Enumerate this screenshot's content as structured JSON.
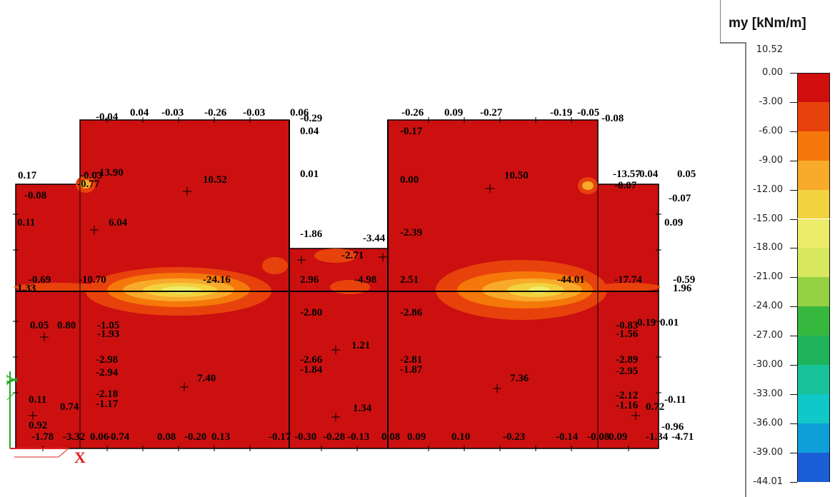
{
  "chart_data": {
    "type": "heatmap",
    "title": "my [kNm/m]",
    "legend_placement": "right",
    "legend": {
      "max_label": "10.52",
      "levels": [
        "0.00",
        "-3.00",
        "-6.00",
        "-9.00",
        "-12.00",
        "-15.00",
        "-18.00",
        "-21.00",
        "-24.00",
        "-27.00",
        "-30.00",
        "-33.00",
        "-36.00",
        "-39.00",
        "-44.01"
      ],
      "colors": [
        "#d10f0f",
        "#e8420c",
        "#f5780a",
        "#f8aa2a",
        "#f2d23e",
        "#ecec6a",
        "#d7e85e",
        "#94d244",
        "#36b83e",
        "#1fb35a",
        "#19c39a",
        "#10c8c8",
        "#0e9ed8",
        "#1a5fd6",
        "#4220c4"
      ]
    },
    "value_labels": [
      "-0.04",
      "0.04",
      "-0.03",
      "-0.26",
      "-0.03",
      "0.06",
      "-0.29",
      "0.04",
      "-0.26",
      "0.09",
      "-0.27",
      "-0.19",
      "-0.05",
      "-0.08",
      "-0.17",
      "0.17",
      "-0.03",
      "-13.90",
      "10.52",
      "0.01",
      "0.00",
      "10.50",
      "-13.57",
      "-0.04",
      "0.05",
      "-0.08",
      "-0.77",
      "-0.07",
      "-0.07",
      "0.11",
      "6.04",
      "0.09",
      "-1.86",
      "-2.39",
      "-3.44",
      "-2.71",
      "-0.69",
      "-10.70",
      "-24.16",
      "2.96",
      "-4.98",
      "2.51",
      "-44.01",
      "-17.74",
      "-0.59",
      "1.33",
      "1.96",
      "0.05",
      "0.80",
      "-1.05",
      "-1.93",
      "-2.80",
      "-2.86",
      "-0.83",
      "-1.56",
      "0.19",
      "0.01",
      "1.21",
      "-2.98",
      "-2.94",
      "-2.66",
      "-1.84",
      "-2.81",
      "-1.87",
      "7.40",
      "7.36",
      "-2.89",
      "-2.95",
      "0.11",
      "0.74",
      "-2.18",
      "-1.17",
      "-2.12",
      "-1.16",
      "0.72",
      "-0.11",
      "1.34",
      "0.92",
      "-0.96",
      "-1.78",
      "-3.32",
      "0.06",
      "-0.74",
      "0.08",
      "-0.20",
      "0.13",
      "-0.17",
      "-0.30",
      "-0.28",
      "-0.13",
      "0.08",
      "0.09",
      "0.10",
      "-0.23",
      "-0.14",
      "-0.08",
      "0.09",
      "-1.34",
      "-4.71"
    ]
  }
}
